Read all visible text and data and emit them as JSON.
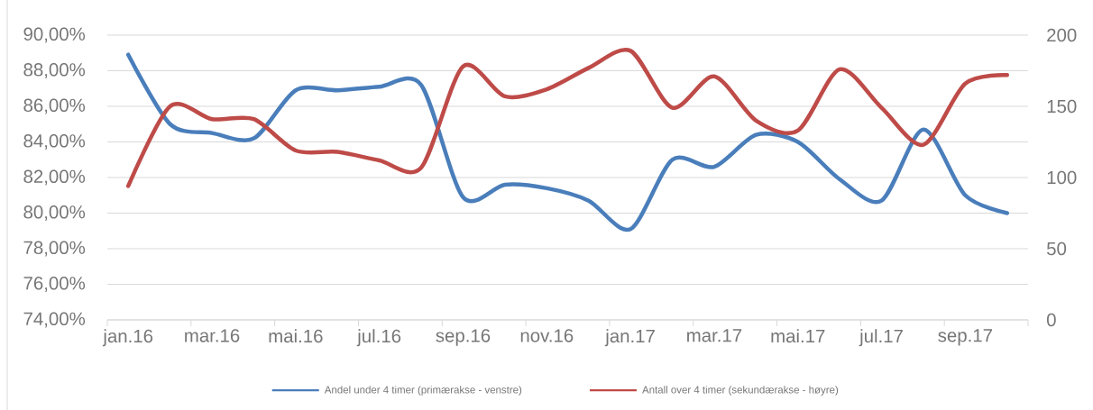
{
  "chart_data": {
    "type": "line",
    "categories": [
      "jan.16",
      null,
      "mar.16",
      null,
      "mai.16",
      null,
      "jul.16",
      null,
      "sep.16",
      null,
      "nov.16",
      null,
      "jan.17",
      null,
      "mar.17",
      null,
      "mai.17",
      null,
      "jul.17",
      null,
      "sep.17",
      null
    ],
    "series": [
      {
        "name": "Andel under 4 timer (primærakse - venstre)",
        "color": "#4a7ebb",
        "values": [
          88.9,
          85.0,
          84.5,
          84.2,
          86.9,
          86.9,
          87.1,
          87.2,
          80.9,
          81.6,
          81.4,
          80.7,
          79.1,
          83.0,
          82.6,
          84.4,
          84.0,
          81.9,
          80.7,
          84.7,
          81.0,
          80.0
        ]
      },
      {
        "name": "Antall over 4 timer (sekundærakse - høyre)",
        "color": "#be4b48",
        "axis": "y2",
        "values": [
          94,
          150,
          141,
          141,
          119,
          118,
          112,
          107,
          178,
          157,
          162,
          177,
          189,
          149,
          171,
          140,
          133,
          176,
          149,
          123,
          166,
          172
        ]
      }
    ],
    "ylim": [
      74,
      90
    ],
    "yticks": [
      {
        "value": 74,
        "label": "74,00%"
      },
      {
        "value": 76,
        "label": "76,00%"
      },
      {
        "value": 78,
        "label": "78,00%"
      },
      {
        "value": 80,
        "label": "80,00%"
      },
      {
        "value": 82,
        "label": "82,00%"
      },
      {
        "value": 84,
        "label": "84,00%"
      },
      {
        "value": 86,
        "label": "86,00%"
      },
      {
        "value": 88,
        "label": "88,00%"
      },
      {
        "value": 90,
        "label": "90,00%"
      }
    ],
    "y2lim": [
      0,
      200
    ],
    "y2ticks": [
      0,
      50,
      100,
      150,
      200
    ],
    "grid": "y",
    "legend": "bottom",
    "line_style": "solid"
  }
}
